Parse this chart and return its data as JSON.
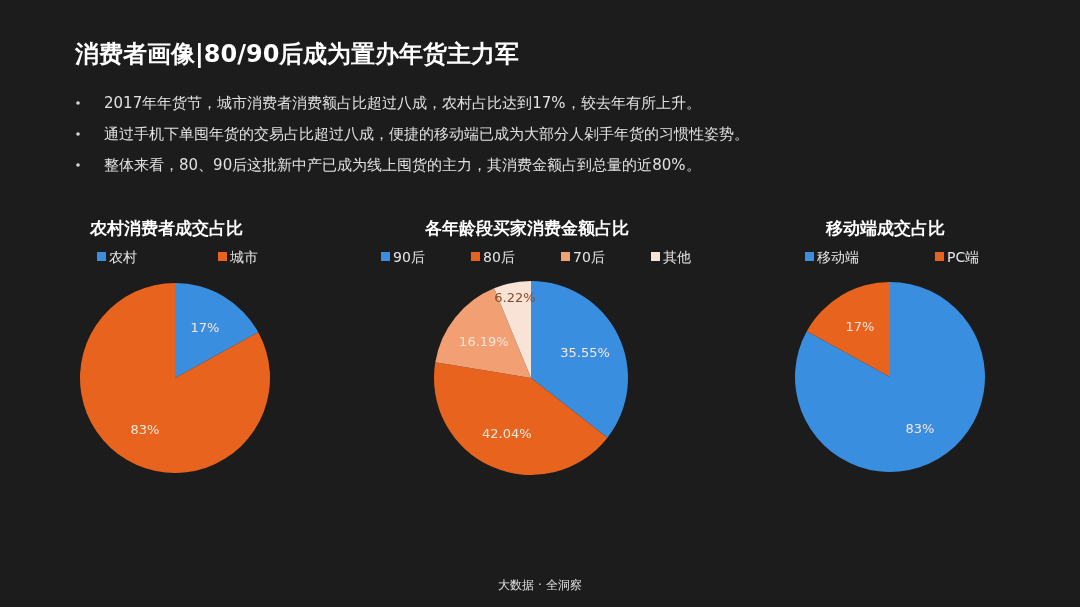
{
  "chart_data": [
    {
      "type": "other",
      "title": "消费者画像|80/90后成为置办年货主力军",
      "annotations": [
        "2017年年货节，城市消费者消费额占比超过八成，农村占比达到17%，较去年有所上升。",
        "通过手机下单囤年货的交易占比超过八成，便捷的移动端已成为大部分人剁手年货的习惯性姿势。",
        "整体来看，80、90后这批新中产已成为线上囤货的主力，其消费金额占到总量的近80%。",
        "大数据 · 全洞察"
      ]
    },
    {
      "type": "pie",
      "title": "农村消费者成交占比",
      "categories": [
        "农村",
        "城市"
      ],
      "values": [
        17,
        83
      ],
      "colors": [
        "#3a8ee0",
        "#e8641e"
      ],
      "value_labels": [
        "17%",
        "83%"
      ],
      "legend": "top"
    },
    {
      "type": "pie",
      "title": "各年龄段买家消费金额占比",
      "categories": [
        "90后",
        "80后",
        "70后",
        "其他"
      ],
      "values": [
        35.55,
        42.04,
        16.19,
        6.22
      ],
      "colors": [
        "#3a8ee0",
        "#e8641e",
        "#f2a073",
        "#f9e3d6"
      ],
      "value_labels": [
        "35.55%",
        "42.04%",
        "16.19%",
        "6.22%"
      ],
      "legend": "top"
    },
    {
      "type": "pie",
      "title": "移动端成交占比",
      "categories": [
        "移动端",
        "PC端"
      ],
      "values": [
        83,
        17
      ],
      "colors": [
        "#3a8ee0",
        "#e8641e"
      ],
      "value_labels": [
        "83%",
        "17%"
      ],
      "legend": "top"
    }
  ]
}
